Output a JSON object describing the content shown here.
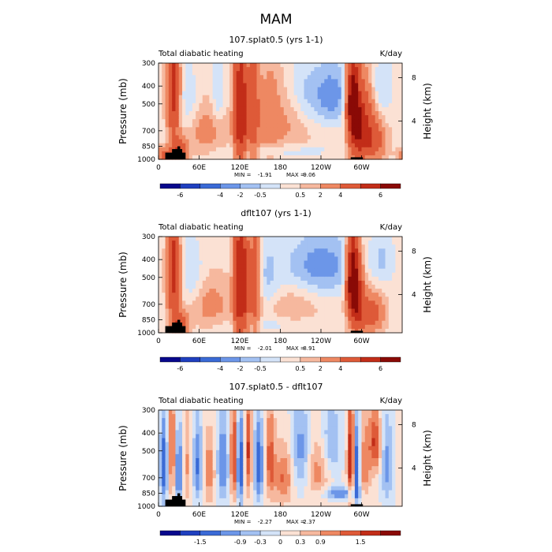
{
  "page_title": "MAM",
  "colors": {
    "panel_scale": [
      "#08088c",
      "#1f3fbf",
      "#3a6ad6",
      "#6c96e8",
      "#a3c1f2",
      "#d4e3f8",
      "#fbe1d4",
      "#f6b89e",
      "#ee8862",
      "#de5a38",
      "#c22d18",
      "#8a0a06"
    ],
    "land": "#000000"
  },
  "chart_data": [
    {
      "type": "heatmap",
      "title": "107.splat0.5 (yrs 1-1)",
      "left_label": "Total diabatic heating",
      "units": "K/day",
      "ylabel": "Pressure (mb)",
      "ylabel_right": "Height (km)",
      "y_ticks": [
        "300",
        "400",
        "500",
        "700",
        "850",
        "1000"
      ],
      "y_ticks_right": [
        "8",
        "4"
      ],
      "x_ticks": [
        "0",
        "60E",
        "120E",
        "180",
        "120W",
        "60W"
      ],
      "stats": {
        "min_label": "MIN =",
        "min_value": "-1.91",
        "max_label": "MAX =",
        "max_value": "9.06"
      },
      "colorbar_labels": [
        "-6",
        "-4",
        "-2",
        "-0.5",
        "0.5",
        "2",
        "4",
        "6"
      ],
      "blobs": [
        {
          "lon": 22,
          "p": 420,
          "w": 6,
          "h": 420,
          "v": 4.5
        },
        {
          "lon": 30,
          "p": 900,
          "w": 8,
          "h": 180,
          "v": 3.5
        },
        {
          "lon": 10,
          "p": 950,
          "w": 10,
          "h": 120,
          "v": 2.0
        },
        {
          "lon": 45,
          "p": 500,
          "w": 10,
          "h": 300,
          "v": -0.8
        },
        {
          "lon": 70,
          "p": 700,
          "w": 25,
          "h": 300,
          "v": 1.0
        },
        {
          "lon": 88,
          "p": 450,
          "w": 6,
          "h": 300,
          "v": -0.9
        },
        {
          "lon": 118,
          "p": 550,
          "w": 5,
          "h": 600,
          "v": 4.5
        },
        {
          "lon": 126,
          "p": 550,
          "w": 4,
          "h": 600,
          "v": 3.5
        },
        {
          "lon": 140,
          "p": 550,
          "w": 6,
          "h": 550,
          "v": 3.0
        },
        {
          "lon": 165,
          "p": 600,
          "w": 12,
          "h": 500,
          "v": 1.2
        },
        {
          "lon": 200,
          "p": 650,
          "w": 20,
          "h": 300,
          "v": 0.8
        },
        {
          "lon": 255,
          "p": 450,
          "w": 20,
          "h": 250,
          "v": -1.7
        },
        {
          "lon": 215,
          "p": 450,
          "w": 15,
          "h": 300,
          "v": -0.8
        },
        {
          "lon": 287,
          "p": 480,
          "w": 6,
          "h": 300,
          "v": 7.5
        },
        {
          "lon": 293,
          "p": 700,
          "w": 8,
          "h": 400,
          "v": 4.0
        },
        {
          "lon": 318,
          "p": 800,
          "w": 12,
          "h": 250,
          "v": 2.5
        },
        {
          "lon": 305,
          "p": 650,
          "w": 10,
          "h": 400,
          "v": 3.0
        },
        {
          "lon": 330,
          "p": 400,
          "w": 12,
          "h": 200,
          "v": -0.8
        },
        {
          "lon": 180,
          "p": 900,
          "w": 60,
          "h": 100,
          "v": -0.6
        }
      ]
    },
    {
      "type": "heatmap",
      "title": "dflt107 (yrs 1-1)",
      "left_label": "Total diabatic heating",
      "units": "K/day",
      "ylabel": "Pressure (mb)",
      "ylabel_right": "Height (km)",
      "y_ticks": [
        "300",
        "400",
        "500",
        "700",
        "850",
        "1000"
      ],
      "y_ticks_right": [
        "8",
        "4"
      ],
      "x_ticks": [
        "0",
        "60E",
        "120E",
        "180",
        "120W",
        "60W"
      ],
      "stats": {
        "min_label": "MIN =",
        "min_value": "-2.01",
        "max_label": "MAX =",
        "max_value": "8.91"
      },
      "colorbar_labels": [
        "-6",
        "-4",
        "-2",
        "-0.5",
        "0.5",
        "2",
        "4",
        "6"
      ],
      "blobs": [
        {
          "lon": 22,
          "p": 450,
          "w": 6,
          "h": 450,
          "v": 4.5
        },
        {
          "lon": 30,
          "p": 900,
          "w": 8,
          "h": 180,
          "v": 3.5
        },
        {
          "lon": 50,
          "p": 500,
          "w": 12,
          "h": 300,
          "v": -0.9
        },
        {
          "lon": 75,
          "p": 700,
          "w": 25,
          "h": 300,
          "v": 1.0
        },
        {
          "lon": 118,
          "p": 550,
          "w": 5,
          "h": 600,
          "v": 4.8
        },
        {
          "lon": 127,
          "p": 550,
          "w": 4,
          "h": 600,
          "v": 3.8
        },
        {
          "lon": 142,
          "p": 550,
          "w": 6,
          "h": 550,
          "v": 3.0
        },
        {
          "lon": 160,
          "p": 500,
          "w": 12,
          "h": 300,
          "v": -0.8
        },
        {
          "lon": 240,
          "p": 430,
          "w": 40,
          "h": 250,
          "v": -1.6
        },
        {
          "lon": 200,
          "p": 720,
          "w": 25,
          "h": 250,
          "v": 0.7
        },
        {
          "lon": 287,
          "p": 500,
          "w": 6,
          "h": 350,
          "v": 7.5
        },
        {
          "lon": 294,
          "p": 700,
          "w": 8,
          "h": 400,
          "v": 4.0
        },
        {
          "lon": 315,
          "p": 780,
          "w": 12,
          "h": 250,
          "v": 2.5
        },
        {
          "lon": 332,
          "p": 400,
          "w": 12,
          "h": 200,
          "v": -0.8
        },
        {
          "lon": 180,
          "p": 900,
          "w": 60,
          "h": 100,
          "v": -0.5
        }
      ]
    },
    {
      "type": "heatmap",
      "title": "107.splat0.5 - dflt107",
      "left_label": "Total diabatic heating",
      "units": "K/day",
      "ylabel": "Pressure (mb)",
      "ylabel_right": "Height (km)",
      "y_ticks": [
        "300",
        "400",
        "500",
        "700",
        "850",
        "1000"
      ],
      "y_ticks_right": [
        "8",
        "4"
      ],
      "x_ticks": [
        "0",
        "60E",
        "120E",
        "180",
        "120W",
        "60W"
      ],
      "stats": {
        "min_label": "MIN =",
        "min_value": "-2.27",
        "max_label": "MAX =",
        "max_value": "2.37"
      },
      "colorbar_labels": [
        "-1.5",
        "-0.9",
        "-0.3",
        "0",
        "0.3",
        "0.9",
        "1.5"
      ],
      "blobs": [
        {
          "lon": 8,
          "p": 600,
          "w": 4,
          "h": 500,
          "v": -1.2
        },
        {
          "lon": 20,
          "p": 500,
          "w": 4,
          "h": 500,
          "v": 1.0
        },
        {
          "lon": 30,
          "p": 650,
          "w": 4,
          "h": 450,
          "v": -1.2
        },
        {
          "lon": 42,
          "p": 600,
          "w": 5,
          "h": 450,
          "v": 0.6
        },
        {
          "lon": 58,
          "p": 600,
          "w": 5,
          "h": 450,
          "v": -1.0
        },
        {
          "lon": 75,
          "p": 650,
          "w": 6,
          "h": 400,
          "v": 0.8
        },
        {
          "lon": 95,
          "p": 600,
          "w": 6,
          "h": 450,
          "v": -1.0
        },
        {
          "lon": 112,
          "p": 550,
          "w": 4,
          "h": 500,
          "v": 1.4
        },
        {
          "lon": 120,
          "p": 600,
          "w": 4,
          "h": 500,
          "v": -1.5
        },
        {
          "lon": 133,
          "p": 500,
          "w": 4,
          "h": 450,
          "v": 1.2
        },
        {
          "lon": 148,
          "p": 600,
          "w": 5,
          "h": 450,
          "v": -1.2
        },
        {
          "lon": 165,
          "p": 550,
          "w": 5,
          "h": 450,
          "v": 1.0
        },
        {
          "lon": 185,
          "p": 700,
          "w": 10,
          "h": 350,
          "v": 0.9
        },
        {
          "lon": 210,
          "p": 500,
          "w": 10,
          "h": 400,
          "v": -0.8
        },
        {
          "lon": 235,
          "p": 650,
          "w": 12,
          "h": 350,
          "v": 0.7
        },
        {
          "lon": 255,
          "p": 450,
          "w": 10,
          "h": 300,
          "v": -0.7
        },
        {
          "lon": 270,
          "p": 850,
          "w": 20,
          "h": 100,
          "v": -0.9
        },
        {
          "lon": 285,
          "p": 550,
          "w": 4,
          "h": 500,
          "v": 1.8
        },
        {
          "lon": 292,
          "p": 600,
          "w": 4,
          "h": 500,
          "v": -1.5
        },
        {
          "lon": 305,
          "p": 600,
          "w": 6,
          "h": 450,
          "v": 0.8
        },
        {
          "lon": 320,
          "p": 450,
          "w": 6,
          "h": 250,
          "v": 1.2
        },
        {
          "lon": 338,
          "p": 600,
          "w": 6,
          "h": 450,
          "v": -0.8
        }
      ]
    }
  ]
}
